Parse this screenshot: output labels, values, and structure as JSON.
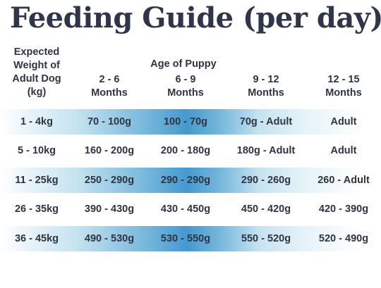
{
  "title": "Feeding Guide (per day):",
  "table": {
    "weight_header": [
      "Expected",
      "Weight of",
      "Adult Dog",
      "(kg)"
    ],
    "age_header": "Age of Puppy",
    "columns": [
      [
        "2 - 6",
        "Months"
      ],
      [
        "6 - 9",
        "Months"
      ],
      [
        "9 - 12",
        "Months"
      ],
      [
        "12 - 15",
        "Months"
      ]
    ],
    "rows": [
      {
        "weight": "1 - 4kg",
        "values": [
          "70 - 100g",
          "100 - 70g",
          "70g - Adult",
          "Adult"
        ],
        "shaded": true
      },
      {
        "weight": "5 - 10kg",
        "values": [
          "160 - 200g",
          "200 - 180g",
          "180g - Adult",
          "Adult"
        ],
        "shaded": false
      },
      {
        "weight": "11 - 25kg",
        "values": [
          "250 - 290g",
          "290 - 290g",
          "290 - 260g",
          "260 - Adult"
        ],
        "shaded": true
      },
      {
        "weight": "26 - 35kg",
        "values": [
          "390 - 430g",
          "430 - 450g",
          "450 - 420g",
          "420 - 390g"
        ],
        "shaded": false
      },
      {
        "weight": "36 - 45kg",
        "values": [
          "490 - 530g",
          "530 - 550g",
          "550 - 520g",
          "520 - 490g"
        ],
        "shaded": true
      }
    ]
  }
}
